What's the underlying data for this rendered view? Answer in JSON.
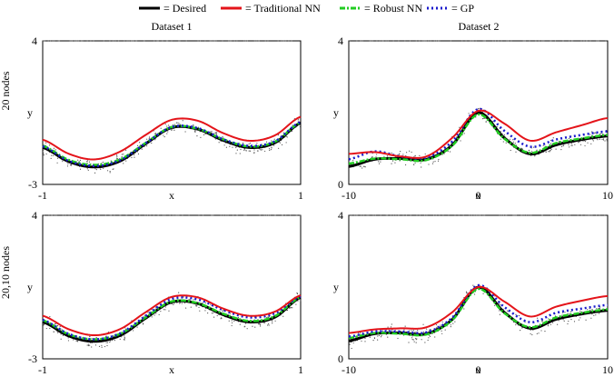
{
  "legend": {
    "entries": [
      {
        "label": "= Desired",
        "color": "#000000",
        "dash": "solid"
      },
      {
        "label": "= Traditional NN",
        "color": "#e4141a",
        "dash": "solid"
      },
      {
        "label": "= Robust NN",
        "color": "#22cc22",
        "dash": "dash-dot"
      },
      {
        "label": "= GP",
        "color": "#1a1acc",
        "dash": "dotted"
      }
    ]
  },
  "columns": [
    "Dataset 1",
    "Dataset 2"
  ],
  "rows": [
    "20 nodes",
    "20,10 nodes"
  ],
  "chart_data": [
    {
      "type": "line",
      "panel": "20 nodes / Dataset 1",
      "xlabel": "x",
      "ylabel": "y",
      "xlim": [
        -1,
        1
      ],
      "ylim": [
        -3,
        4
      ],
      "xticks": [
        "-1",
        "1"
      ],
      "yticks": [
        "-3",
        "4"
      ],
      "outlier_y": 4,
      "x": [
        -1,
        -0.8,
        -0.6,
        -0.4,
        -0.2,
        0,
        0.2,
        0.4,
        0.6,
        0.8,
        1
      ],
      "series": [
        {
          "name": "Desired",
          "values": [
            -1.2,
            -1.88,
            -2.15,
            -1.86,
            -1.01,
            -0.23,
            -0.3,
            -0.85,
            -1.2,
            -0.97,
            0.0
          ]
        },
        {
          "name": "Traditional NN",
          "values": [
            -0.82,
            -1.5,
            -1.78,
            -1.4,
            -0.58,
            0.15,
            0.11,
            -0.5,
            -0.87,
            -0.61,
            0.3
          ]
        },
        {
          "name": "Robust NN",
          "values": [
            -1.12,
            -1.8,
            -2.05,
            -1.78,
            -0.97,
            -0.2,
            -0.28,
            -0.8,
            -1.15,
            -0.92,
            0.02
          ]
        },
        {
          "name": "GP",
          "values": [
            -1.14,
            -1.85,
            -2.1,
            -1.82,
            -0.98,
            -0.2,
            -0.25,
            -0.8,
            -1.12,
            -0.9,
            0.05
          ]
        }
      ]
    },
    {
      "type": "line",
      "panel": "20 nodes / Dataset 2",
      "xlabel": "x",
      "ylabel": "y",
      "xlim": [
        -10,
        10
      ],
      "ylim": [
        0,
        4
      ],
      "xticks": [
        "-10",
        "0",
        "10"
      ],
      "yticks": [
        "0",
        "4"
      ],
      "outlier_y": 4,
      "x": [
        -10,
        -8,
        -6,
        -4,
        -2,
        0,
        2,
        4,
        6,
        8,
        10
      ],
      "series": [
        {
          "name": "Desired",
          "values": [
            0.5,
            0.7,
            0.72,
            0.7,
            1.1,
            2.0,
            1.3,
            0.85,
            1.1,
            1.25,
            1.35
          ]
        },
        {
          "name": "Traditional NN",
          "values": [
            0.85,
            0.9,
            0.78,
            0.78,
            1.3,
            2.05,
            1.7,
            1.22,
            1.45,
            1.65,
            1.85
          ]
        },
        {
          "name": "Robust NN",
          "values": [
            0.58,
            0.72,
            0.7,
            0.68,
            1.08,
            1.95,
            1.28,
            0.88,
            1.15,
            1.28,
            1.38
          ]
        },
        {
          "name": "GP",
          "values": [
            0.7,
            0.92,
            0.78,
            0.75,
            1.2,
            2.1,
            1.5,
            1.05,
            1.25,
            1.38,
            1.48
          ]
        }
      ]
    },
    {
      "type": "line",
      "panel": "20,10 nodes / Dataset 1",
      "xlabel": "x",
      "ylabel": "y",
      "xlim": [
        -1,
        1
      ],
      "ylim": [
        -3,
        4
      ],
      "xticks": [
        "-1",
        "1"
      ],
      "yticks": [
        "-3",
        "4"
      ],
      "outlier_y": 4,
      "x": [
        -1,
        -0.8,
        -0.6,
        -0.4,
        -0.2,
        0,
        0.2,
        0.4,
        0.6,
        0.8,
        1
      ],
      "series": [
        {
          "name": "Desired",
          "values": [
            -1.2,
            -1.88,
            -2.15,
            -1.86,
            -1.01,
            -0.23,
            -0.3,
            -0.85,
            -1.2,
            -0.97,
            0.0
          ]
        },
        {
          "name": "Traditional NN",
          "values": [
            -0.9,
            -1.55,
            -1.85,
            -1.55,
            -0.72,
            0.02,
            0.0,
            -0.55,
            -0.9,
            -0.7,
            0.1
          ]
        },
        {
          "name": "Robust NN",
          "values": [
            -1.12,
            -1.8,
            -2.05,
            -1.78,
            -0.97,
            -0.2,
            -0.28,
            -0.8,
            -1.15,
            -0.92,
            0.02
          ]
        },
        {
          "name": "GP",
          "values": [
            -1.1,
            -1.78,
            -2.05,
            -1.76,
            -0.9,
            -0.08,
            -0.1,
            -0.62,
            -0.98,
            -0.78,
            0.05
          ]
        }
      ]
    },
    {
      "type": "line",
      "panel": "20,10 nodes / Dataset 2",
      "xlabel": "x",
      "ylabel": "y",
      "xlim": [
        -10,
        10
      ],
      "ylim": [
        0,
        4
      ],
      "xticks": [
        "-10",
        "0",
        "10"
      ],
      "yticks": [
        "0",
        "4"
      ],
      "outlier_y": 4,
      "x": [
        -10,
        -8,
        -6,
        -4,
        -2,
        0,
        2,
        4,
        6,
        8,
        10
      ],
      "series": [
        {
          "name": "Desired",
          "values": [
            0.5,
            0.7,
            0.72,
            0.7,
            1.1,
            2.0,
            1.3,
            0.85,
            1.1,
            1.25,
            1.35
          ]
        },
        {
          "name": "Traditional NN",
          "values": [
            0.72,
            0.82,
            0.85,
            0.88,
            1.3,
            2.0,
            1.6,
            1.18,
            1.45,
            1.62,
            1.75
          ]
        },
        {
          "name": "Robust NN",
          "values": [
            0.58,
            0.72,
            0.7,
            0.68,
            1.08,
            1.95,
            1.28,
            0.88,
            1.15,
            1.28,
            1.38
          ]
        },
        {
          "name": "GP",
          "values": [
            0.62,
            0.76,
            0.76,
            0.74,
            1.15,
            2.05,
            1.45,
            1.02,
            1.28,
            1.4,
            1.5
          ]
        }
      ]
    }
  ]
}
